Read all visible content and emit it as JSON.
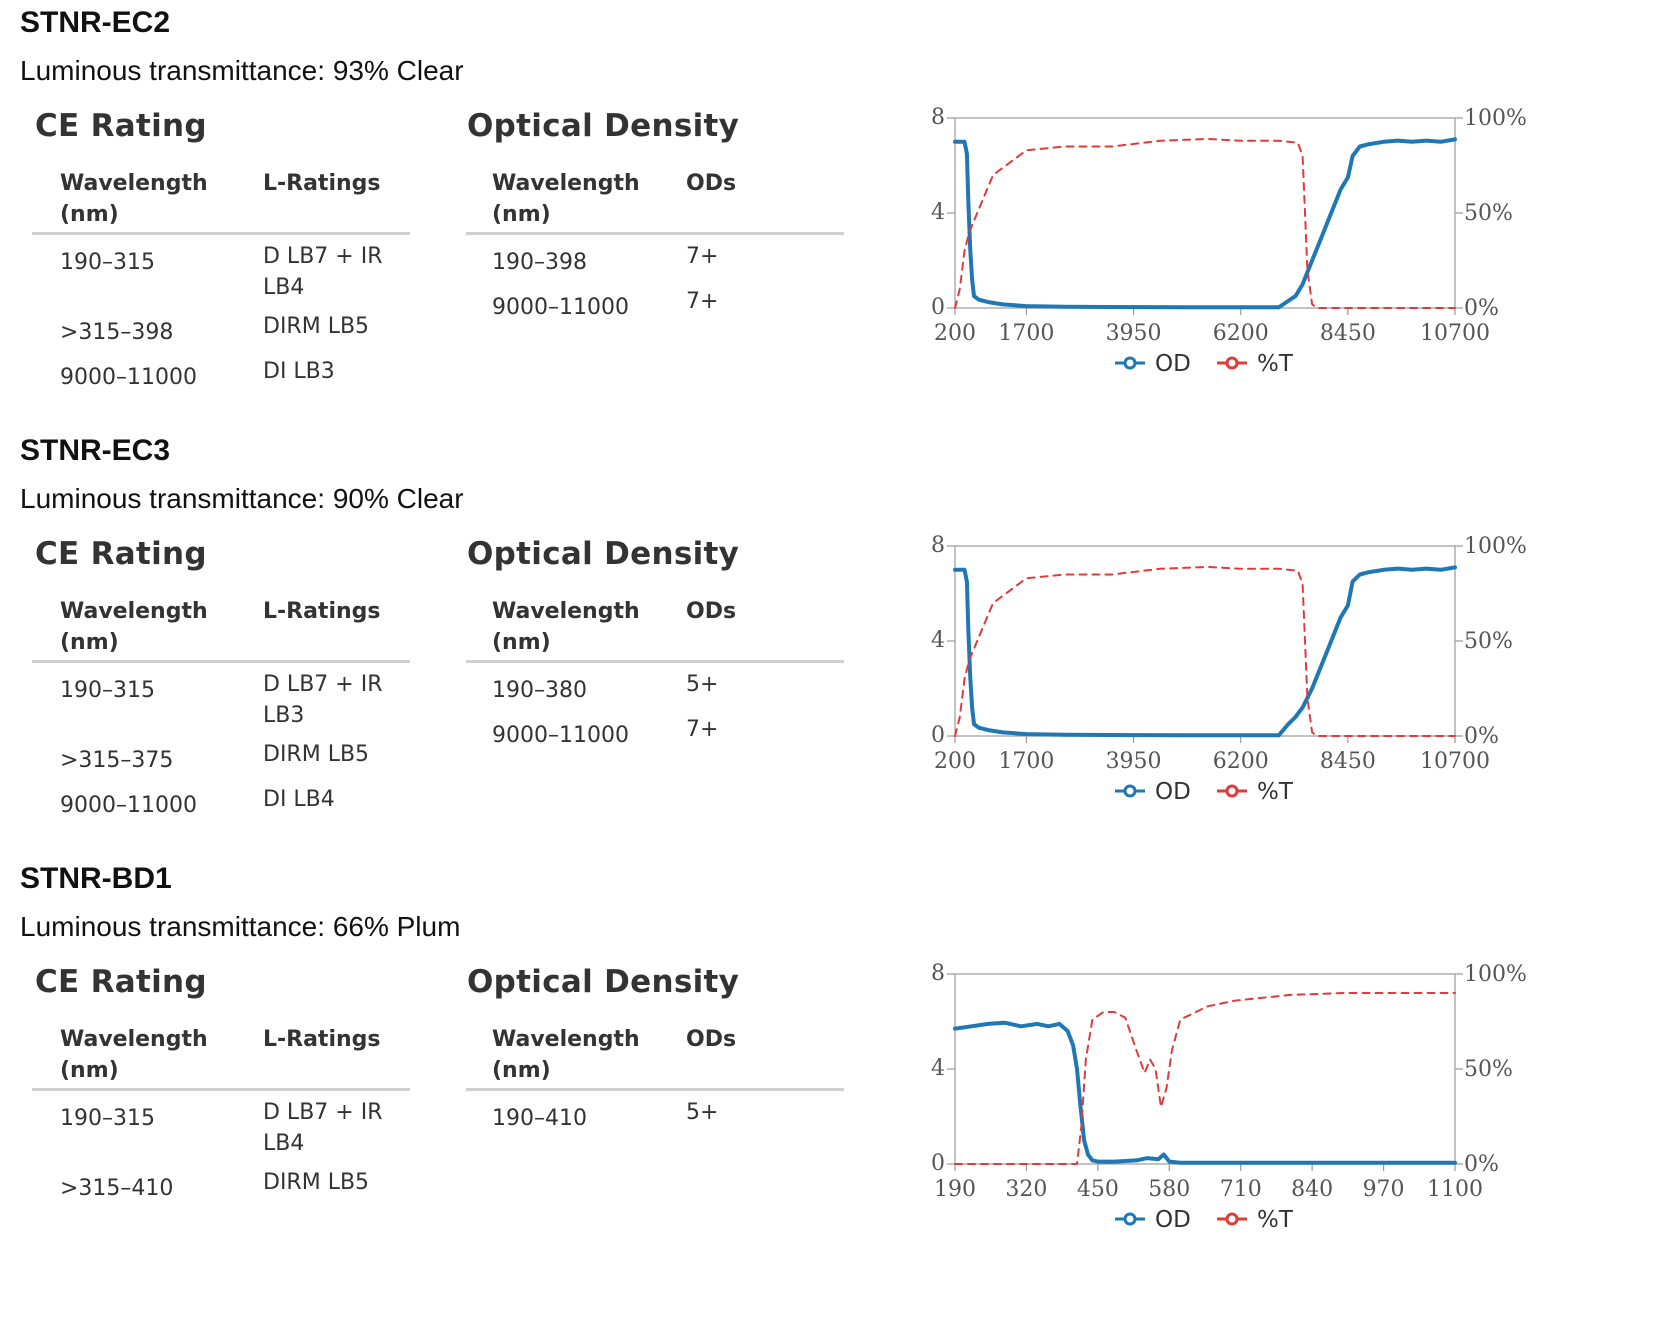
{
  "products": [
    {
      "name": "STNR-EC2",
      "luminous": "Luminous transmittance: 93% Clear",
      "ce_title": "CE Rating",
      "ce_headers": [
        "Wavelength (nm)",
        "L-Ratings"
      ],
      "ce_rows": [
        [
          "190–315",
          "D LB7 + IR LB4"
        ],
        [
          ">315–398",
          "DIRM LB5"
        ],
        [
          "9000–11000",
          "DI LB3"
        ]
      ],
      "od_title": "Optical Density",
      "od_headers": [
        "Wavelength (nm)",
        "ODs"
      ],
      "od_rows": [
        [
          "190–398",
          "7+"
        ],
        [
          "9000–11000",
          "7+"
        ]
      ]
    },
    {
      "name": "STNR-EC3",
      "luminous": "Luminous transmittance: 90% Clear",
      "ce_title": "CE Rating",
      "ce_headers": [
        "Wavelength (nm)",
        "L-Ratings"
      ],
      "ce_rows": [
        [
          "190–315",
          "D LB7 + IR LB3"
        ],
        [
          ">315–375",
          "DIRM LB5"
        ],
        [
          "9000–11000",
          "DI LB4"
        ]
      ],
      "od_title": "Optical Density",
      "od_headers": [
        "Wavelength (nm)",
        "ODs"
      ],
      "od_rows": [
        [
          "190–380",
          "5+"
        ],
        [
          "9000–11000",
          "7+"
        ]
      ]
    },
    {
      "name": "STNR-BD1",
      "luminous": "Luminous transmittance: 66% Plum",
      "ce_title": "CE Rating",
      "ce_headers": [
        "Wavelength (nm)",
        "L-Ratings"
      ],
      "ce_rows": [
        [
          "190–315",
          "D LB7 + IR LB4"
        ],
        [
          ">315–410",
          "DIRM LB5"
        ]
      ],
      "od_title": "Optical Density",
      "od_headers": [
        "Wavelength (nm)",
        "ODs"
      ],
      "od_rows": [
        [
          "190–410",
          "5+"
        ]
      ]
    }
  ],
  "chart_data": [
    {
      "type": "line",
      "xticks": [
        200,
        1700,
        3950,
        6200,
        8450,
        10700
      ],
      "xlim": [
        200,
        10700
      ],
      "ylim": [
        0,
        8
      ],
      "yticks": [
        0,
        4,
        8
      ],
      "y2lim": [
        0,
        100
      ],
      "y2ticks": [
        "0%",
        "50%",
        "100%"
      ],
      "legend_position": "bottom-center",
      "series": [
        {
          "name": "OD",
          "axis": "left",
          "color": "#1f77b4",
          "style": "solid",
          "x": [
            200,
            400,
            450,
            480,
            520,
            560,
            600,
            700,
            900,
            1200,
            1700,
            2500,
            3950,
            5000,
            6200,
            7000,
            7200,
            7350,
            7500,
            7700,
            7900,
            8100,
            8300,
            8450,
            8550,
            8700,
            8900,
            9200,
            9500,
            9800,
            10100,
            10400,
            10700
          ],
          "y": [
            7.0,
            7.0,
            6.5,
            4.5,
            2.5,
            1.2,
            0.5,
            0.35,
            0.25,
            0.15,
            0.08,
            0.05,
            0.04,
            0.03,
            0.03,
            0.03,
            0.3,
            0.5,
            1.0,
            2.0,
            3.0,
            4.0,
            5.0,
            5.5,
            6.4,
            6.8,
            6.9,
            7.0,
            7.05,
            7.0,
            7.05,
            7.0,
            7.1
          ]
        },
        {
          "name": "%T",
          "axis": "right",
          "color": "#e03b3b",
          "style": "dashed",
          "x": [
            200,
            300,
            400,
            500,
            700,
            1000,
            1700,
            2500,
            3500,
            4500,
            5500,
            6200,
            7000,
            7400,
            7500,
            7600,
            7700,
            7800,
            8000,
            8450,
            10700
          ],
          "y": [
            0,
            10,
            30,
            40,
            52,
            70,
            83,
            85,
            85,
            88,
            89,
            88,
            88,
            87,
            80,
            20,
            2,
            0,
            0,
            0,
            0
          ]
        }
      ]
    },
    {
      "type": "line",
      "xticks": [
        200,
        1700,
        3950,
        6200,
        8450,
        10700
      ],
      "xlim": [
        200,
        10700
      ],
      "ylim": [
        0,
        8
      ],
      "yticks": [
        0,
        4,
        8
      ],
      "y2lim": [
        0,
        100
      ],
      "y2ticks": [
        "0%",
        "50%",
        "100%"
      ],
      "legend_position": "bottom-center",
      "series": [
        {
          "name": "OD",
          "axis": "left",
          "color": "#1f77b4",
          "style": "solid",
          "x": [
            200,
            400,
            450,
            480,
            520,
            560,
            600,
            700,
            900,
            1200,
            1700,
            2500,
            3950,
            5000,
            6200,
            7000,
            7200,
            7350,
            7500,
            7700,
            7900,
            8100,
            8300,
            8450,
            8550,
            8700,
            8900,
            9200,
            9500,
            9800,
            10100,
            10400,
            10700
          ],
          "y": [
            7.0,
            7.0,
            6.5,
            4.5,
            2.5,
            1.2,
            0.5,
            0.35,
            0.25,
            0.15,
            0.08,
            0.05,
            0.04,
            0.03,
            0.03,
            0.03,
            0.5,
            0.8,
            1.2,
            2.0,
            3.0,
            4.0,
            5.0,
            5.5,
            6.5,
            6.8,
            6.9,
            7.0,
            7.05,
            7.0,
            7.05,
            7.0,
            7.1
          ]
        },
        {
          "name": "%T",
          "axis": "right",
          "color": "#e03b3b",
          "style": "dashed",
          "x": [
            200,
            300,
            400,
            500,
            700,
            1000,
            1700,
            2500,
            3500,
            4500,
            5500,
            6200,
            7000,
            7400,
            7500,
            7600,
            7700,
            7800,
            8000,
            8450,
            10700
          ],
          "y": [
            0,
            10,
            30,
            40,
            52,
            70,
            83,
            85,
            85,
            88,
            89,
            88,
            88,
            87,
            80,
            20,
            2,
            0,
            0,
            0,
            0
          ]
        }
      ]
    },
    {
      "type": "line",
      "xticks": [
        190,
        320,
        450,
        580,
        710,
        840,
        970,
        1100
      ],
      "xlim": [
        190,
        1100
      ],
      "ylim": [
        0,
        8
      ],
      "yticks": [
        0,
        4,
        8
      ],
      "y2lim": [
        0,
        100
      ],
      "y2ticks": [
        "0%",
        "50%",
        "100%"
      ],
      "legend_position": "bottom-center",
      "series": [
        {
          "name": "OD",
          "axis": "left",
          "color": "#1f77b4",
          "style": "solid",
          "x": [
            190,
            220,
            250,
            280,
            310,
            340,
            360,
            380,
            395,
            405,
            412,
            418,
            425,
            432,
            440,
            450,
            480,
            520,
            540,
            560,
            570,
            580,
            600,
            700,
            850,
            1000,
            1100
          ],
          "y": [
            5.7,
            5.8,
            5.9,
            5.95,
            5.8,
            5.9,
            5.8,
            5.9,
            5.6,
            5.0,
            4.0,
            2.5,
            1.0,
            0.4,
            0.15,
            0.1,
            0.1,
            0.15,
            0.25,
            0.2,
            0.4,
            0.1,
            0.05,
            0.05,
            0.05,
            0.05,
            0.05
          ]
        },
        {
          "name": "%T",
          "axis": "right",
          "color": "#e03b3b",
          "style": "dashed",
          "x": [
            190,
            300,
            400,
            412,
            420,
            428,
            440,
            460,
            480,
            500,
            520,
            535,
            545,
            555,
            565,
            575,
            585,
            600,
            650,
            700,
            800,
            900,
            1000,
            1100
          ],
          "y": [
            0,
            0,
            0,
            0,
            20,
            55,
            76,
            80,
            80,
            77,
            60,
            48,
            55,
            50,
            30,
            40,
            60,
            76,
            83,
            86,
            89,
            90,
            90,
            90
          ]
        }
      ]
    }
  ]
}
